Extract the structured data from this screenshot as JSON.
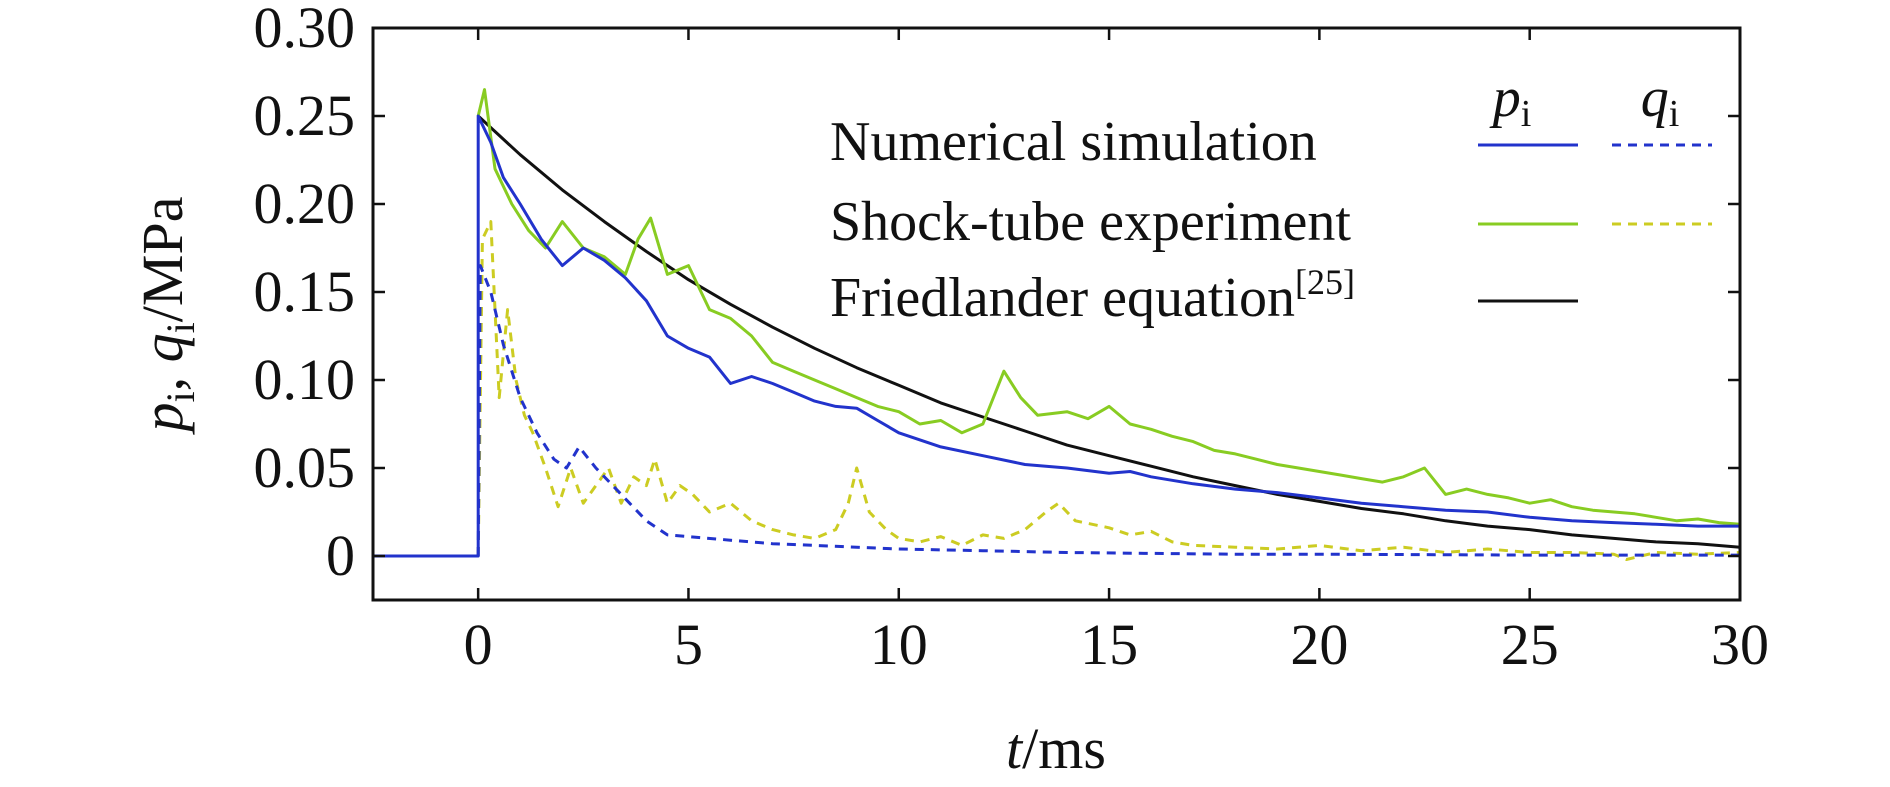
{
  "chart_data": {
    "type": "line",
    "xlabel": {
      "var": "t",
      "unit": "/ms"
    },
    "ylabel": {
      "var1": "p",
      "sub1": "i",
      "sep": ", ",
      "var2": "q",
      "sub2": "i",
      "unit": "/MPa"
    },
    "xlim": [
      -2.5,
      30
    ],
    "ylim": [
      -0.025,
      0.3
    ],
    "xticks": [
      0,
      5,
      10,
      15,
      20,
      25,
      30
    ],
    "xtick_labels": [
      "0",
      "5",
      "10",
      "15",
      "20",
      "25",
      "30"
    ],
    "yticks": [
      0,
      0.05,
      0.1,
      0.15,
      0.2,
      0.25,
      0.3
    ],
    "ytick_labels": [
      "0",
      "0.05",
      "0.10",
      "0.15",
      "0.20",
      "0.25",
      "0.30"
    ],
    "grid": false,
    "legend": {
      "position": "top-right",
      "col_headers": [
        {
          "var": "p",
          "sub": "i"
        },
        {
          "var": "q",
          "sub": "i"
        }
      ],
      "rows": [
        {
          "label": "Numerical simulation",
          "sup": "",
          "p_color": "#2233cc",
          "q_color": "#2233cc",
          "has_q": true
        },
        {
          "label": "Shock-tube experiment",
          "sup": "",
          "p_color": "#88cc22",
          "q_color": "#cccc22",
          "has_q": true
        },
        {
          "label": "Friedlander equation",
          "sup": "[25]",
          "p_color": "#111111",
          "q_color": "#111111",
          "has_q": false
        }
      ]
    },
    "series": [
      {
        "key": "sim_p",
        "color": "#2233cc",
        "dash": "",
        "x": [
          -2.5,
          0,
          0,
          0.3,
          0.6,
          1.0,
          1.5,
          2.0,
          2.5,
          3.0,
          3.5,
          4.0,
          4.5,
          5.0,
          5.5,
          6.0,
          6.5,
          7.0,
          7.5,
          8.0,
          8.5,
          9.0,
          9.5,
          10,
          11,
          12,
          13,
          14,
          15,
          15.5,
          16,
          17,
          18,
          19,
          20,
          21,
          22,
          23,
          24,
          25,
          26,
          27,
          28,
          29,
          30
        ],
        "y": [
          0,
          0,
          0.25,
          0.235,
          0.215,
          0.2,
          0.18,
          0.165,
          0.175,
          0.168,
          0.158,
          0.145,
          0.125,
          0.118,
          0.113,
          0.098,
          0.102,
          0.098,
          0.093,
          0.088,
          0.085,
          0.084,
          0.077,
          0.07,
          0.062,
          0.057,
          0.052,
          0.05,
          0.047,
          0.048,
          0.045,
          0.041,
          0.038,
          0.036,
          0.033,
          0.03,
          0.028,
          0.026,
          0.025,
          0.022,
          0.02,
          0.019,
          0.018,
          0.017,
          0.017
        ]
      },
      {
        "key": "exp_p",
        "color": "#88cc22",
        "dash": "",
        "x": [
          0,
          0.15,
          0.4,
          0.8,
          1.2,
          1.6,
          2.0,
          2.5,
          3.0,
          3.5,
          3.8,
          4.1,
          4.5,
          5.0,
          5.5,
          6.0,
          6.5,
          7.0,
          7.5,
          8.0,
          8.5,
          9.0,
          9.5,
          10,
          10.5,
          11,
          11.5,
          12,
          12.5,
          12.9,
          13.3,
          14,
          14.5,
          15,
          15.5,
          16,
          16.5,
          17,
          17.5,
          18,
          18.5,
          19,
          19.5,
          20,
          20.5,
          21,
          21.5,
          22,
          22.5,
          23,
          23.5,
          24,
          24.5,
          25,
          25.5,
          26,
          26.5,
          27,
          27.5,
          28,
          28.5,
          29,
          29.5,
          30
        ],
        "y": [
          0.25,
          0.265,
          0.22,
          0.2,
          0.185,
          0.175,
          0.19,
          0.175,
          0.17,
          0.16,
          0.18,
          0.192,
          0.16,
          0.165,
          0.14,
          0.135,
          0.125,
          0.11,
          0.105,
          0.1,
          0.095,
          0.09,
          0.085,
          0.082,
          0.075,
          0.077,
          0.07,
          0.075,
          0.105,
          0.09,
          0.08,
          0.082,
          0.078,
          0.085,
          0.075,
          0.072,
          0.068,
          0.065,
          0.06,
          0.058,
          0.055,
          0.052,
          0.05,
          0.048,
          0.046,
          0.044,
          0.042,
          0.045,
          0.05,
          0.035,
          0.038,
          0.035,
          0.033,
          0.03,
          0.032,
          0.028,
          0.026,
          0.025,
          0.024,
          0.022,
          0.02,
          0.021,
          0.019,
          0.018
        ]
      },
      {
        "key": "fried_p",
        "color": "#111111",
        "dash": "",
        "x": [
          0,
          0.5,
          1,
          2,
          3,
          4,
          5,
          6,
          7,
          8,
          9,
          10,
          11,
          12,
          13,
          14,
          15,
          16,
          17,
          18,
          19,
          20,
          21,
          22,
          23,
          24,
          25,
          26,
          27,
          28,
          29,
          30
        ],
        "y": [
          0.25,
          0.239,
          0.228,
          0.208,
          0.19,
          0.173,
          0.157,
          0.143,
          0.13,
          0.118,
          0.107,
          0.097,
          0.087,
          0.079,
          0.071,
          0.063,
          0.057,
          0.051,
          0.045,
          0.04,
          0.035,
          0.031,
          0.027,
          0.024,
          0.02,
          0.017,
          0.015,
          0.012,
          0.01,
          0.008,
          0.007,
          0.005
        ]
      },
      {
        "key": "sim_q",
        "color": "#2233cc",
        "dash": "9,7",
        "x": [
          0,
          0.05,
          0.3,
          0.6,
          1.0,
          1.4,
          1.8,
          2.1,
          2.4,
          2.8,
          3.2,
          3.6,
          4.0,
          4.5,
          5.0,
          6,
          7,
          8,
          9,
          10,
          12,
          14,
          16,
          18,
          20,
          25,
          30
        ],
        "y": [
          0,
          0.165,
          0.15,
          0.12,
          0.09,
          0.07,
          0.055,
          0.05,
          0.062,
          0.05,
          0.04,
          0.03,
          0.02,
          0.012,
          0.011,
          0.009,
          0.007,
          0.006,
          0.005,
          0.004,
          0.003,
          0.002,
          0.0015,
          0.001,
          0.001,
          0.0005,
          0.0005
        ]
      },
      {
        "key": "exp_q",
        "color": "#cccc22",
        "dash": "9,7",
        "x": [
          0,
          0.1,
          0.3,
          0.5,
          0.7,
          0.9,
          1.1,
          1.3,
          1.6,
          1.9,
          2.2,
          2.5,
          2.8,
          3.1,
          3.4,
          3.7,
          4.0,
          4.2,
          4.5,
          4.8,
          5.1,
          5.5,
          6.0,
          6.5,
          7.0,
          7.5,
          8.0,
          8.5,
          8.8,
          9.0,
          9.3,
          9.7,
          10,
          10.5,
          11,
          11.5,
          12,
          12.5,
          13,
          13.5,
          13.8,
          14.2,
          14.6,
          15,
          15.5,
          16,
          16.5,
          17,
          18,
          19,
          20,
          21,
          22,
          23,
          24,
          25,
          26,
          27,
          27.3,
          28,
          29,
          30
        ],
        "y": [
          0,
          0.18,
          0.19,
          0.09,
          0.14,
          0.1,
          0.08,
          0.07,
          0.05,
          0.028,
          0.05,
          0.03,
          0.04,
          0.05,
          0.03,
          0.045,
          0.04,
          0.055,
          0.03,
          0.04,
          0.035,
          0.025,
          0.03,
          0.02,
          0.015,
          0.012,
          0.01,
          0.015,
          0.03,
          0.05,
          0.025,
          0.015,
          0.01,
          0.008,
          0.011,
          0.006,
          0.012,
          0.01,
          0.015,
          0.025,
          0.03,
          0.02,
          0.018,
          0.016,
          0.012,
          0.014,
          0.008,
          0.006,
          0.005,
          0.004,
          0.006,
          0.003,
          0.005,
          0.002,
          0.004,
          0.002,
          0.002,
          0.001,
          -0.002,
          0.002,
          0.001,
          0.002
        ]
      }
    ]
  }
}
